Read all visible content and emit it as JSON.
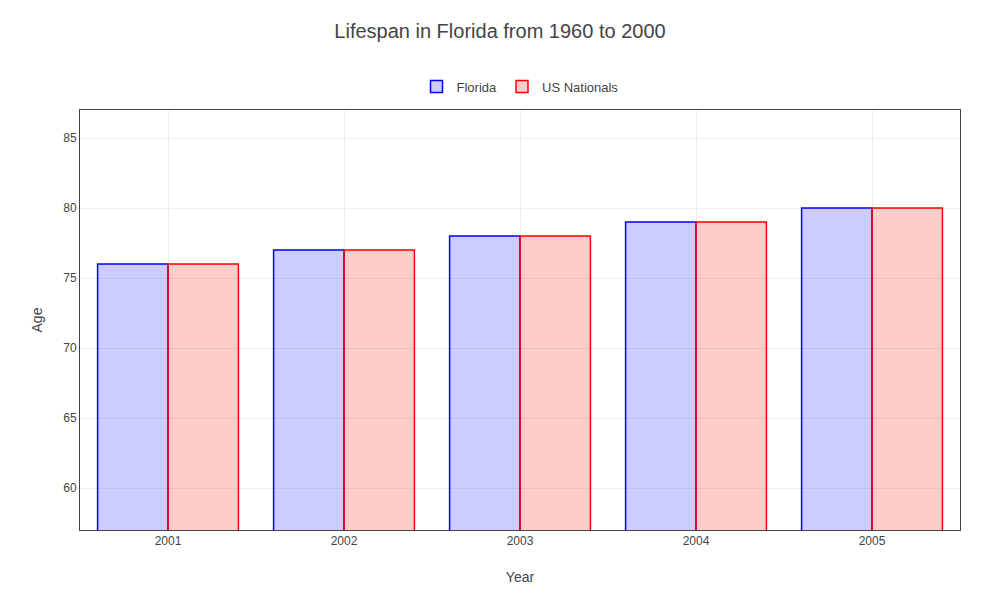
{
  "chart_data": {
    "type": "bar",
    "title": "Lifespan in Florida from 1960 to 2000",
    "x_label": "Year",
    "y_label": "Age",
    "categories": [
      2001,
      2002,
      2003,
      2004,
      2005
    ],
    "series": [
      {
        "name": "Florida",
        "color": "#0000ff",
        "values": [
          76,
          77,
          78,
          79,
          80
        ]
      },
      {
        "name": "US Nationals",
        "color": "#ff0000",
        "values": [
          76,
          77,
          78,
          79,
          80
        ]
      }
    ],
    "ylim": [
      57,
      87
    ],
    "yticks": [
      60,
      65,
      70,
      75,
      80,
      85
    ],
    "grid": true,
    "legend": "top"
  }
}
